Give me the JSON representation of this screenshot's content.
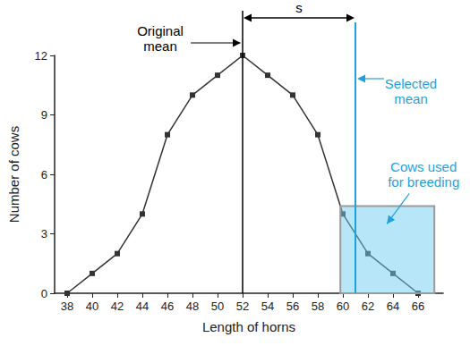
{
  "chart_data": {
    "type": "line",
    "x": [
      38,
      40,
      42,
      44,
      46,
      48,
      50,
      52,
      54,
      56,
      58,
      60,
      62,
      64,
      66
    ],
    "values": [
      0,
      1,
      2,
      4,
      8,
      10,
      11,
      12,
      11,
      10,
      8,
      4,
      2,
      1,
      0
    ],
    "color": "#333333",
    "marker": "square",
    "xlabel": "Length of horns",
    "ylabel": "Number of cows",
    "xlim": [
      37,
      68
    ],
    "ylim": [
      0,
      12
    ],
    "xticks": [
      38,
      40,
      42,
      44,
      46,
      48,
      50,
      52,
      54,
      56,
      58,
      60,
      62,
      64,
      66
    ],
    "yticks": [
      0,
      3,
      6,
      9,
      12
    ],
    "grid": false,
    "annotations": {
      "original_mean": {
        "text": "Original mean",
        "x": 52,
        "color": "#000000"
      },
      "selected_mean": {
        "text": "Selected mean",
        "x": 61,
        "color": "#1fa2dc"
      },
      "difference": {
        "text": "s",
        "from": 52,
        "to": 61,
        "color": "#000000"
      },
      "selected_region": {
        "text": "Cows used for breeding",
        "x": [
          59.8,
          67.3
        ],
        "y": [
          0,
          4.4
        ],
        "color": "#1fa2dc"
      }
    }
  }
}
